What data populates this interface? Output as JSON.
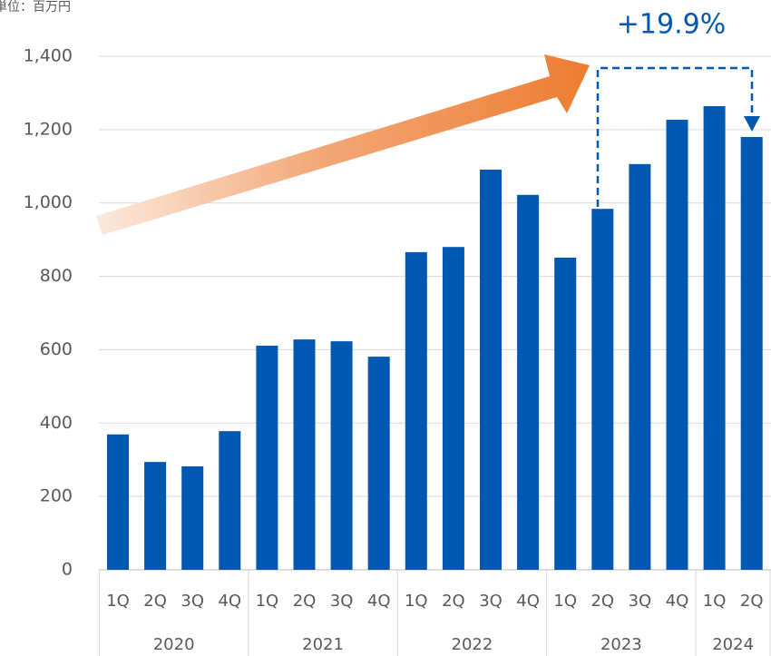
{
  "chart_data": {
    "type": "bar",
    "unit_label": "単位：百万円",
    "annotation": "+19.9%",
    "category_groups": [
      {
        "name": "2020",
        "categories": [
          "1Q",
          "2Q",
          "3Q",
          "4Q"
        ]
      },
      {
        "name": "2021",
        "categories": [
          "1Q",
          "2Q",
          "3Q",
          "4Q"
        ]
      },
      {
        "name": "2022",
        "categories": [
          "1Q",
          "2Q",
          "3Q",
          "4Q"
        ]
      },
      {
        "name": "2023",
        "categories": [
          "1Q",
          "2Q",
          "3Q",
          "4Q"
        ]
      },
      {
        "name": "2024",
        "categories": [
          "1Q",
          "2Q"
        ]
      }
    ],
    "values": [
      369,
      294,
      282,
      378,
      611,
      628,
      623,
      581,
      866,
      880,
      1091,
      1022,
      851,
      984,
      1106,
      1227,
      1264,
      1180
    ],
    "color": "#0058b0",
    "ylim": [
      0,
      1400
    ],
    "yticks": [
      0,
      {
        "value": 200,
        "label": "200"
      },
      {
        "value": 400,
        "label": "400"
      },
      {
        "value": 600,
        "label": "600"
      },
      {
        "value": 800,
        "label": "800"
      },
      {
        "value": 1000,
        "label": "1,000"
      },
      {
        "value": 1200,
        "label": "1,200"
      },
      {
        "value": 1400,
        "label": "1,400"
      }
    ],
    "grid": true
  }
}
